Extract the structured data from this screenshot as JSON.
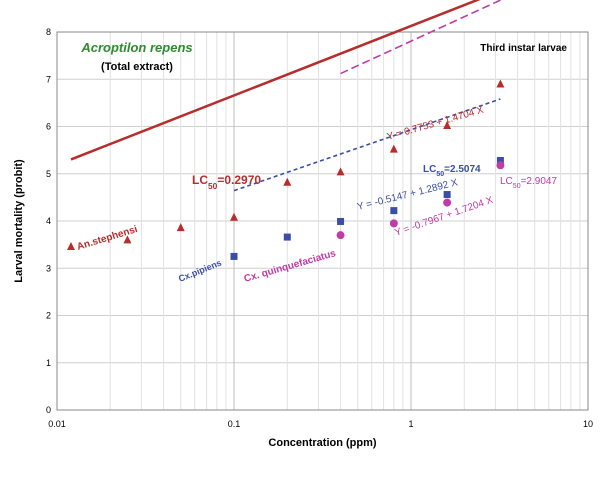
{
  "chart_data": {
    "type": "scatter",
    "x_scale": "log",
    "title": "Acroptilon repens",
    "subtitle": "(Total extract)",
    "corner_label": "Third instar larvae",
    "xlabel": "Concentration (ppm)",
    "ylabel": "Larval mortality (probit)",
    "xlim": [
      0.01,
      10
    ],
    "ylim": [
      0,
      8
    ],
    "x_ticks": [
      0.01,
      0.1,
      1,
      10
    ],
    "x_tick_labels": [
      "0.01",
      "0.1",
      "1",
      "10"
    ],
    "y_ticks": [
      0,
      1,
      2,
      3,
      4,
      5,
      6,
      7,
      8
    ],
    "grid": true,
    "legend": "none",
    "colors": {
      "title": "#2e8b2e",
      "an_stephensi": "#b82c2c",
      "cx_pipiens": "#3a4ea6",
      "cx_quinquefasciatus": "#c23aa6"
    },
    "series": [
      {
        "name": "An.stephensi",
        "marker": "triangle",
        "color": "#b82c2c",
        "x": [
          0.012,
          0.025,
          0.05,
          0.1,
          0.2,
          0.4,
          0.8,
          1.6,
          3.2
        ],
        "y": [
          3.46,
          3.6,
          3.86,
          4.08,
          4.82,
          5.04,
          5.52,
          6.02,
          6.9
        ],
        "fit": {
          "intercept": 0.7753,
          "slope": 1.4704,
          "x_range": [
            0.012,
            3.2
          ],
          "style": "solid"
        },
        "equation": "Y = 0.7753 + 1.4704 X",
        "lc50_label": "LC",
        "lc50_sub": "50",
        "lc50_value": "=0.2970"
      },
      {
        "name": "Cx.pipiens",
        "marker": "square",
        "color": "#3a4ea6",
        "x": [
          0.1,
          0.2,
          0.4,
          0.8,
          1.6,
          3.2
        ],
        "y": [
          3.25,
          3.66,
          3.99,
          4.22,
          4.56,
          5.28
        ],
        "fit": {
          "intercept": -0.5147,
          "slope": 1.2892,
          "x_range": [
            0.1,
            3.2
          ],
          "style": "dashed"
        },
        "equation": "Y = -0.5147 + 1.2892 X",
        "lc50_label": "LC",
        "lc50_sub": "50",
        "lc50_value": "=2.5074"
      },
      {
        "name": "Cx. quinquefaciatus",
        "marker": "circle",
        "color": "#c23aa6",
        "x": [
          0.4,
          0.8,
          1.6,
          3.2
        ],
        "y": [
          3.7,
          3.95,
          4.39,
          5.18
        ],
        "fit": {
          "intercept": -0.7967,
          "slope": 1.7204,
          "x_range": [
            0.4,
            3.2
          ],
          "style": "dashed"
        },
        "equation": "Y = -0.7967 + 1.7204 X",
        "lc50_label": "LC",
        "lc50_sub": "50",
        "lc50_value": "=2.9047"
      }
    ]
  }
}
